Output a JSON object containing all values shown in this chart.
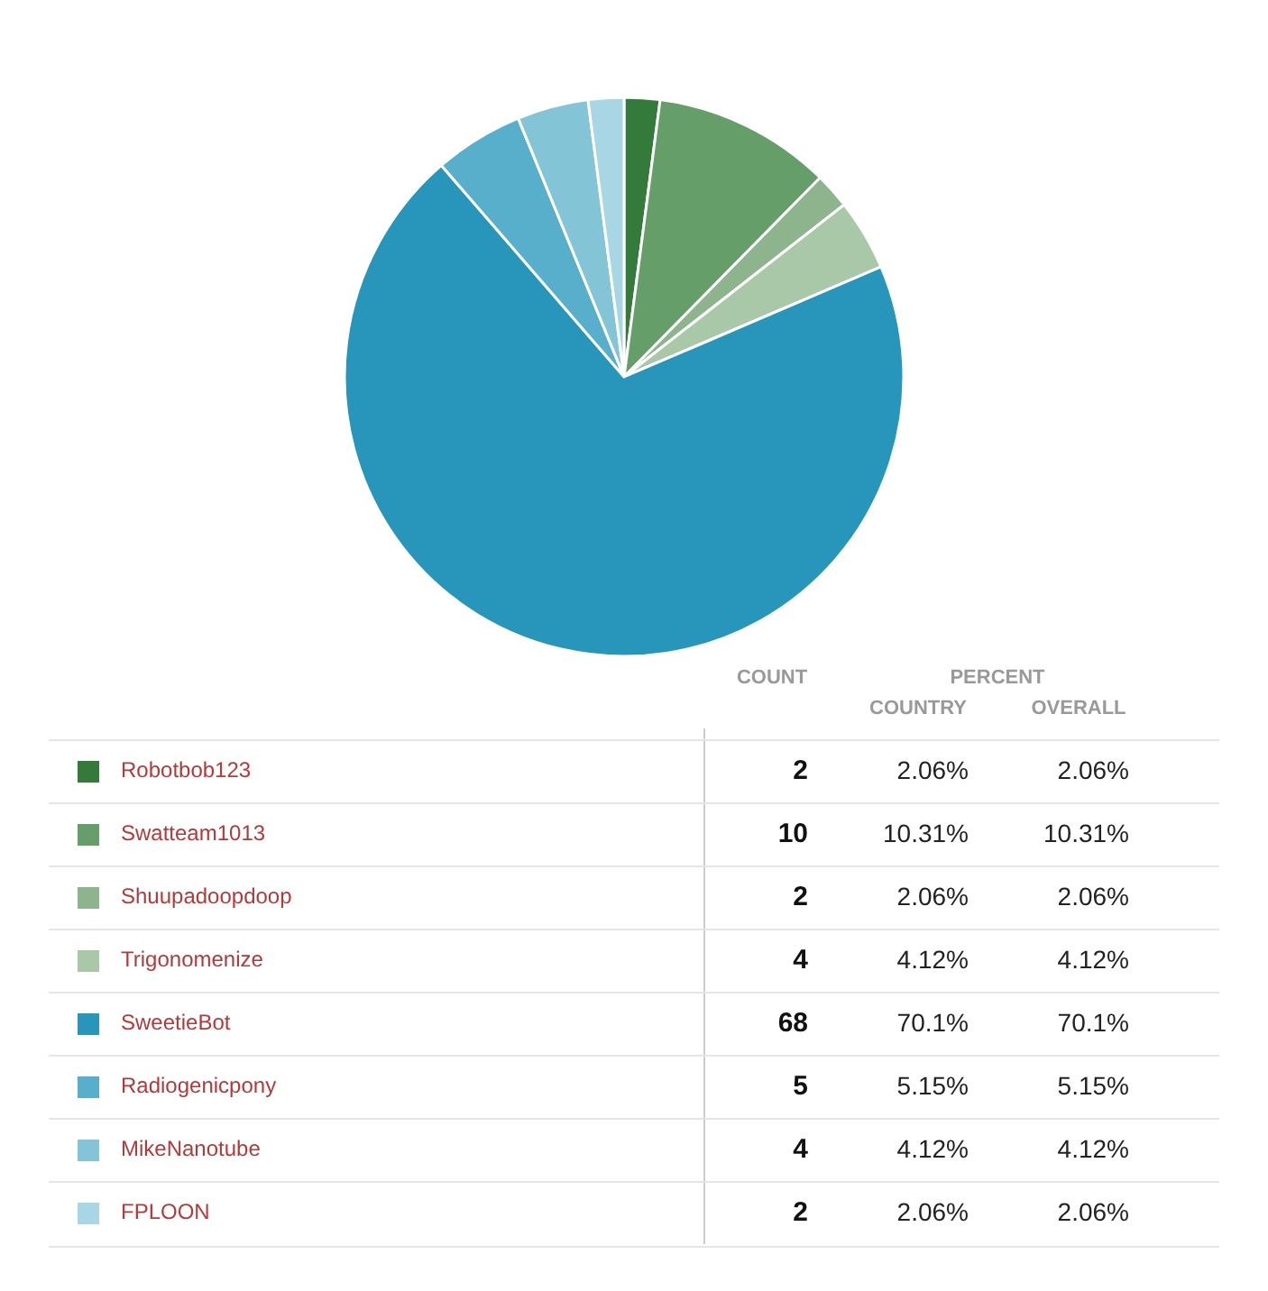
{
  "chart_data": {
    "type": "pie",
    "categories": [
      "Robotbob123",
      "Swatteam1013",
      "Shuupadoopdoop",
      "Trigonomenize",
      "SweetieBot",
      "Radiogenicpony",
      "MikeNanotube",
      "FPLOON"
    ],
    "values": [
      2,
      10,
      2,
      4,
      68,
      5,
      4,
      2
    ],
    "colors": [
      "#347b3b",
      "#669e6a",
      "#8db48d",
      "#a9c8a8",
      "#2896bb",
      "#58afcb",
      "#84c4d7",
      "#a8d6e4"
    ],
    "data_labels": true,
    "legend": "bottom",
    "annotations": [
      "COUNT",
      "PERCENT",
      "COUNTRY",
      "OVERALL",
      "2.06%",
      "2.06%",
      "10.31%",
      "10.31%",
      "2.06%",
      "2.06%",
      "4.12%",
      "4.12%",
      "70.1%",
      "70.1%",
      "5.15%",
      "5.15%",
      "4.12%",
      "4.12%",
      "2.06%",
      "2.06%"
    ]
  }
}
